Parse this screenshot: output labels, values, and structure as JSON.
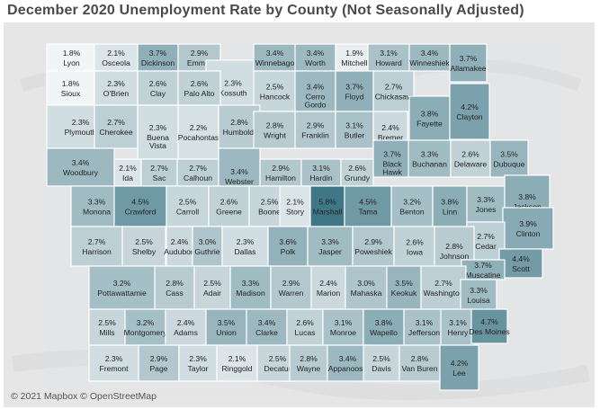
{
  "title": "December 2020 Unemployment Rate by County (Not Seasonally Adjusted)",
  "attribution": "© 2021 Mapbox © OpenStreetMap",
  "colors": {
    "low": "#f2f5f6",
    "high": "#3f7787",
    "land_bg": "#e6e6e6",
    "state_bg": "#d9e3e6"
  },
  "counties": [
    {
      "name": "Lyon",
      "rate": "1.8%"
    },
    {
      "name": "Osceola",
      "rate": "2.1%"
    },
    {
      "name": "Dickinson",
      "rate": "3.7%"
    },
    {
      "name": "Emmet",
      "rate": "2.9%"
    },
    {
      "name": "Kossuth",
      "rate": "2.3%"
    },
    {
      "name": "Winnebago",
      "rate": "3.4%"
    },
    {
      "name": "Worth",
      "rate": "3.4%"
    },
    {
      "name": "Mitchell",
      "rate": "1.9%"
    },
    {
      "name": "Howard",
      "rate": "3.1%"
    },
    {
      "name": "Winneshiek",
      "rate": "3.4%"
    },
    {
      "name": "Allamakee",
      "rate": "3.7%"
    },
    {
      "name": "Sioux",
      "rate": "1.8%"
    },
    {
      "name": "O'Brien",
      "rate": "2.3%"
    },
    {
      "name": "Clay",
      "rate": "2.6%"
    },
    {
      "name": "Palo Alto",
      "rate": "2.6%"
    },
    {
      "name": "Hancock",
      "rate": "2.5%"
    },
    {
      "name": "Cerro Gordo",
      "rate": "3.4%"
    },
    {
      "name": "Floyd",
      "rate": "3.7%"
    },
    {
      "name": "Chickasaw",
      "rate": "2.7%"
    },
    {
      "name": "Fayette",
      "rate": "3.8%"
    },
    {
      "name": "Clayton",
      "rate": "4.2%"
    },
    {
      "name": "Plymouth",
      "rate": "2.3%"
    },
    {
      "name": "Cherokee",
      "rate": "2.7%"
    },
    {
      "name": "Buena Vista",
      "rate": "2.3%"
    },
    {
      "name": "Pocahontas",
      "rate": "2.2%"
    },
    {
      "name": "Humboldt",
      "rate": "2.8%"
    },
    {
      "name": "Wright",
      "rate": "2.8%"
    },
    {
      "name": "Franklin",
      "rate": "2.9%"
    },
    {
      "name": "Butler",
      "rate": "3.1%"
    },
    {
      "name": "Bremer",
      "rate": "2.4%"
    },
    {
      "name": "Black Hawk",
      "rate": "3.7%"
    },
    {
      "name": "Buchanan",
      "rate": "3.3%"
    },
    {
      "name": "Delaware",
      "rate": "2.6%"
    },
    {
      "name": "Dubuque",
      "rate": "3.5%"
    },
    {
      "name": "Woodbury",
      "rate": "3.4%"
    },
    {
      "name": "Ida",
      "rate": "2.1%"
    },
    {
      "name": "Sac",
      "rate": "2.7%"
    },
    {
      "name": "Calhoun",
      "rate": "2.7%"
    },
    {
      "name": "Webster",
      "rate": "3.4%"
    },
    {
      "name": "Hamilton",
      "rate": "2.9%"
    },
    {
      "name": "Hardin",
      "rate": "3.1%"
    },
    {
      "name": "Grundy",
      "rate": "2.6%"
    },
    {
      "name": "Monona",
      "rate": "3.3%"
    },
    {
      "name": "Crawford",
      "rate": "4.5%"
    },
    {
      "name": "Carroll",
      "rate": "2.5%"
    },
    {
      "name": "Greene",
      "rate": "2.6%"
    },
    {
      "name": "Boone",
      "rate": "2.5%"
    },
    {
      "name": "Story",
      "rate": "2.1%"
    },
    {
      "name": "Marshall",
      "rate": "5.8%"
    },
    {
      "name": "Tama",
      "rate": "4.5%"
    },
    {
      "name": "Benton",
      "rate": "3.2%"
    },
    {
      "name": "Linn",
      "rate": "3.8%"
    },
    {
      "name": "Jones",
      "rate": "3.3%"
    },
    {
      "name": "Jackson",
      "rate": "3.8%"
    },
    {
      "name": "Clinton",
      "rate": "3.9%"
    },
    {
      "name": "Cedar",
      "rate": "2.7%"
    },
    {
      "name": "Scott",
      "rate": "4.4%"
    },
    {
      "name": "Harrison",
      "rate": "2.7%"
    },
    {
      "name": "Shelby",
      "rate": "2.5%"
    },
    {
      "name": "Audubon",
      "rate": "2.4%"
    },
    {
      "name": "Guthrie",
      "rate": "3.0%"
    },
    {
      "name": "Dallas",
      "rate": "2.3%"
    },
    {
      "name": "Polk",
      "rate": "3.6%"
    },
    {
      "name": "Jasper",
      "rate": "3.3%"
    },
    {
      "name": "Poweshiek",
      "rate": "2.9%"
    },
    {
      "name": "Iowa",
      "rate": "2.6%"
    },
    {
      "name": "Johnson",
      "rate": "2.8%"
    },
    {
      "name": "Muscatine",
      "rate": "3.7%"
    },
    {
      "name": "Pottawattamie",
      "rate": "3.2%"
    },
    {
      "name": "Cass",
      "rate": "2.8%"
    },
    {
      "name": "Adair",
      "rate": "2.5%"
    },
    {
      "name": "Madison",
      "rate": "3.3%"
    },
    {
      "name": "Warren",
      "rate": "2.9%"
    },
    {
      "name": "Marion",
      "rate": "2.4%"
    },
    {
      "name": "Mahaska",
      "rate": "3.0%"
    },
    {
      "name": "Keokuk",
      "rate": "3.5%"
    },
    {
      "name": "Washington",
      "rate": "2.7%"
    },
    {
      "name": "Louisa",
      "rate": "3.3%"
    },
    {
      "name": "Mills",
      "rate": "2.5%"
    },
    {
      "name": "Montgomery",
      "rate": "3.2%"
    },
    {
      "name": "Adams",
      "rate": "2.4%"
    },
    {
      "name": "Union",
      "rate": "3.5%"
    },
    {
      "name": "Clarke",
      "rate": "3.4%"
    },
    {
      "name": "Lucas",
      "rate": "2.6%"
    },
    {
      "name": "Monroe",
      "rate": "3.1%"
    },
    {
      "name": "Wapello",
      "rate": "3.8%"
    },
    {
      "name": "Jefferson",
      "rate": "3.1%"
    },
    {
      "name": "Henry",
      "rate": "3.1%"
    },
    {
      "name": "Des Moines",
      "rate": "4.7%"
    },
    {
      "name": "Fremont",
      "rate": "2.3%"
    },
    {
      "name": "Page",
      "rate": "2.9%"
    },
    {
      "name": "Taylor",
      "rate": "2.3%"
    },
    {
      "name": "Ringgold",
      "rate": "2.1%"
    },
    {
      "name": "Decatur",
      "rate": "2.5%"
    },
    {
      "name": "Wayne",
      "rate": "2.8%"
    },
    {
      "name": "Appanoose",
      "rate": "3.4%"
    },
    {
      "name": "Davis",
      "rate": "2.5%"
    },
    {
      "name": "Van Buren",
      "rate": "2.8%"
    },
    {
      "name": "Lee",
      "rate": "4.2%"
    }
  ]
}
